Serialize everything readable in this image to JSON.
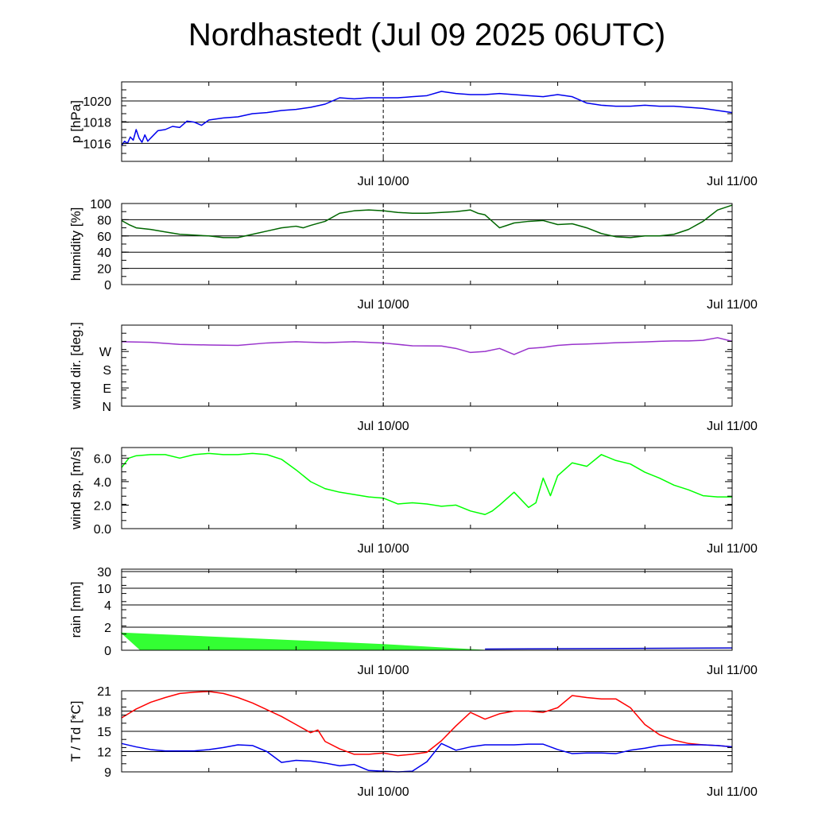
{
  "title": "Nordhastedt (Jul 09 2025 06UTC)",
  "x_tick_labels": [
    "Jul 10/00",
    "Jul 11/00"
  ],
  "chart_data": [
    {
      "type": "line",
      "ylabel": "p [hPa]",
      "ylim": [
        1014.3,
        1021.8
      ],
      "yticks": [
        1016,
        1018,
        1020
      ],
      "ytick_labels": [
        "1016",
        "1018",
        "1020"
      ],
      "grid": [
        1016,
        1018,
        1020
      ],
      "x_unit": "hours since Jul 09 06UTC",
      "xlim": [
        0,
        42
      ],
      "series": [
        {
          "color": "#0000ee",
          "x": [
            0,
            0.2,
            0.4,
            0.6,
            0.8,
            1,
            1.2,
            1.4,
            1.6,
            1.8,
            2,
            2.5,
            3,
            3.5,
            4,
            4.5,
            5,
            5.5,
            6,
            7,
            8,
            9,
            10,
            11,
            12,
            13,
            14,
            15,
            16,
            17,
            18,
            19,
            20,
            21,
            22,
            23,
            24,
            25,
            26,
            27,
            28,
            29,
            30,
            31,
            32,
            33,
            34,
            35,
            36,
            37,
            38,
            39,
            40,
            41,
            42
          ],
          "y": [
            1015.8,
            1016.2,
            1016.0,
            1016.6,
            1016.3,
            1017.3,
            1016.5,
            1016.1,
            1016.8,
            1016.2,
            1016.5,
            1017.2,
            1017.3,
            1017.6,
            1017.5,
            1018.1,
            1018.0,
            1017.7,
            1018.2,
            1018.4,
            1018.5,
            1018.8,
            1018.9,
            1019.1,
            1019.2,
            1019.4,
            1019.7,
            1020.3,
            1020.2,
            1020.3,
            1020.3,
            1020.3,
            1020.4,
            1020.5,
            1020.9,
            1020.7,
            1020.6,
            1020.6,
            1020.7,
            1020.6,
            1020.5,
            1020.4,
            1020.6,
            1020.4,
            1019.8,
            1019.6,
            1019.5,
            1019.5,
            1019.6,
            1019.5,
            1019.5,
            1019.4,
            1019.3,
            1019.1,
            1018.9
          ]
        }
      ]
    },
    {
      "type": "line",
      "ylabel": "humidity [%]",
      "ylim": [
        0,
        100
      ],
      "yticks": [
        0,
        20,
        40,
        60,
        80,
        100
      ],
      "ytick_labels": [
        "0",
        "20",
        "40",
        "60",
        "80",
        "100"
      ],
      "grid": [
        20,
        40,
        60,
        80
      ],
      "xlim": [
        0,
        42
      ],
      "series": [
        {
          "color": "#006600",
          "x": [
            0,
            0.5,
            1,
            2,
            3,
            4,
            5,
            6,
            7,
            8,
            9,
            10,
            11,
            12,
            12.5,
            13,
            14,
            15,
            16,
            17,
            18,
            19,
            20,
            21,
            22,
            23,
            24,
            24.5,
            25,
            26,
            27,
            28,
            29,
            30,
            31,
            32,
            33,
            34,
            35,
            36,
            37,
            38,
            39,
            40,
            41,
            42
          ],
          "y": [
            79,
            74,
            70,
            68,
            65,
            62,
            61,
            60,
            58,
            58,
            62,
            66,
            70,
            72,
            70,
            73,
            78,
            88,
            91,
            92,
            91,
            89,
            88,
            88,
            89,
            90,
            92,
            88,
            86,
            70,
            76,
            78,
            79,
            74,
            75,
            70,
            63,
            59,
            58,
            60,
            60,
            62,
            68,
            78,
            92,
            98
          ]
        }
      ]
    },
    {
      "type": "line",
      "ylabel": "wind dir. [deg.]",
      "ylim": [
        0,
        400
      ],
      "yticks": [
        0,
        90,
        180,
        270
      ],
      "ytick_labels": [
        "N",
        "E",
        "S",
        "W"
      ],
      "grid": [],
      "xlim": [
        0,
        42
      ],
      "series": [
        {
          "color": "#9933cc",
          "x": [
            0,
            2,
            4,
            6,
            8,
            10,
            12,
            14,
            16,
            18,
            20,
            22,
            23,
            24,
            25,
            26,
            26.5,
            27,
            28,
            29,
            30,
            31,
            32,
            33,
            34,
            35,
            36,
            37,
            38,
            39,
            40,
            41,
            42
          ],
          "y": [
            318,
            315,
            305,
            302,
            300,
            312,
            318,
            313,
            318,
            312,
            298,
            297,
            285,
            265,
            270,
            285,
            270,
            255,
            285,
            290,
            300,
            305,
            307,
            310,
            313,
            315,
            317,
            320,
            322,
            322,
            325,
            338,
            320
          ]
        }
      ]
    },
    {
      "type": "line",
      "ylabel": "wind sp. [m/s]",
      "ylim": [
        0,
        6.9
      ],
      "yticks": [
        0,
        2,
        4,
        6
      ],
      "ytick_labels": [
        "0.0",
        "2.0",
        "4.0",
        "6.0"
      ],
      "grid": [],
      "xlim": [
        0,
        42
      ],
      "series": [
        {
          "color": "#00ff00",
          "x": [
            0,
            0.5,
            1,
            2,
            3,
            4,
            5,
            6,
            7,
            8,
            9,
            10,
            11,
            12,
            13,
            14,
            15,
            16,
            17,
            18,
            19,
            20,
            21,
            22,
            23,
            24,
            25,
            25.5,
            26,
            27,
            28,
            28.5,
            29,
            29.5,
            30,
            31,
            32,
            33,
            34,
            35,
            36,
            37,
            38,
            39,
            40,
            41,
            42
          ],
          "y": [
            5.2,
            6.0,
            6.2,
            6.3,
            6.3,
            6.0,
            6.3,
            6.4,
            6.3,
            6.3,
            6.4,
            6.3,
            5.9,
            5.0,
            4.0,
            3.4,
            3.1,
            2.9,
            2.7,
            2.6,
            2.1,
            2.2,
            2.1,
            1.9,
            2.0,
            1.5,
            1.2,
            1.5,
            2.0,
            3.1,
            1.8,
            2.2,
            4.3,
            2.8,
            4.5,
            5.6,
            5.3,
            6.3,
            5.8,
            5.5,
            4.8,
            4.3,
            3.7,
            3.3,
            2.8,
            2.7,
            2.7
          ]
        }
      ]
    },
    {
      "type": "area",
      "ylabel": "rain [mm]",
      "yticks": [
        0,
        2,
        4,
        10,
        30
      ],
      "ytick_labels": [
        "0",
        "2",
        "4",
        "10",
        "30"
      ],
      "grid": [
        2,
        4,
        10,
        30
      ],
      "xlim": [
        0,
        42
      ],
      "series": [
        {
          "color": "#33ff33",
          "x": [
            0,
            18,
            25
          ],
          "y": [
            1.5,
            0.5,
            0.0
          ]
        },
        {
          "color": "#0000cc",
          "x": [
            25,
            42
          ],
          "y": [
            0.1,
            0.2
          ]
        }
      ]
    },
    {
      "type": "line",
      "ylabel": "T / Td [*C]",
      "ylim": [
        9,
        21
      ],
      "yticks": [
        9,
        12,
        15,
        18,
        21
      ],
      "ytick_labels": [
        "9",
        "12",
        "15",
        "18",
        "21"
      ],
      "grid": [
        12,
        15,
        18
      ],
      "xlim": [
        0,
        42
      ],
      "series": [
        {
          "color": "#ff0000",
          "x": [
            0,
            1,
            2,
            3,
            4,
            5,
            6,
            7,
            8,
            9,
            10,
            11,
            12,
            13,
            13.5,
            14,
            15,
            16,
            17,
            18,
            19,
            20,
            21,
            22,
            23,
            24,
            25,
            26,
            27,
            28,
            29,
            30,
            31,
            32,
            33,
            34,
            35,
            36,
            37,
            38,
            39,
            40,
            41,
            42
          ],
          "y": [
            17.0,
            18.3,
            19.3,
            20.0,
            20.6,
            20.8,
            20.9,
            20.6,
            20.0,
            19.2,
            18.2,
            17.2,
            16.0,
            14.8,
            15.2,
            13.5,
            12.4,
            11.6,
            11.6,
            11.8,
            11.4,
            11.6,
            11.9,
            13.6,
            15.8,
            17.8,
            16.8,
            17.6,
            18.0,
            18.0,
            17.8,
            18.5,
            20.3,
            20.0,
            19.8,
            19.8,
            18.5,
            16.0,
            14.5,
            13.7,
            13.2,
            13.0,
            12.9,
            12.7
          ]
        },
        {
          "color": "#0000ee",
          "x": [
            0,
            1,
            2,
            3,
            4,
            5,
            6,
            7,
            8,
            9,
            10,
            11,
            12,
            13,
            14,
            15,
            16,
            17,
            18,
            19,
            20,
            21,
            22,
            23,
            24,
            25,
            26,
            27,
            28,
            29,
            30,
            31,
            32,
            33,
            34,
            35,
            36,
            37,
            38,
            39,
            40,
            41,
            42
          ],
          "y": [
            13.2,
            12.7,
            12.3,
            12.1,
            12.1,
            12.1,
            12.3,
            12.6,
            13.0,
            12.9,
            12.0,
            10.4,
            10.7,
            10.6,
            10.3,
            9.9,
            10.1,
            9.2,
            9.1,
            9.0,
            9.1,
            10.5,
            13.2,
            12.2,
            12.7,
            13.0,
            13.0,
            13.0,
            13.1,
            13.1,
            12.3,
            11.7,
            11.8,
            11.8,
            11.7,
            12.2,
            12.5,
            12.9,
            13.0,
            13.0,
            13.0,
            12.9,
            12.7
          ]
        }
      ]
    }
  ]
}
